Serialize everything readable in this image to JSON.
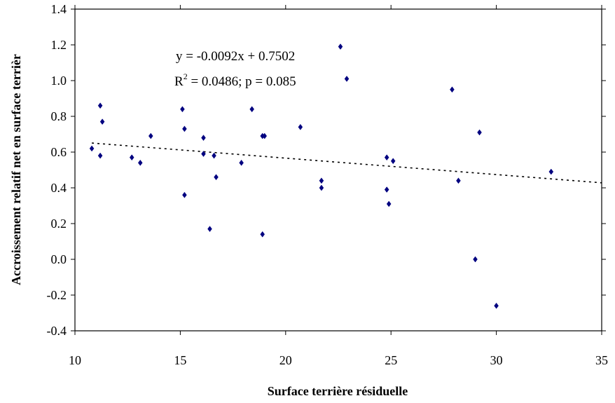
{
  "chart_data": {
    "type": "scatter",
    "title": "",
    "xlabel": "Surface terrière résiduelle",
    "ylabel": "Accroissement relatif net en surface terrièr",
    "xlim": [
      10,
      35
    ],
    "ylim": [
      -0.4,
      1.4
    ],
    "x_ticks": [
      "10",
      "15",
      "20",
      "25",
      "30",
      "35"
    ],
    "y_ticks": [
      "-0.4",
      "-0.2",
      "0.0",
      "0.2",
      "0.4",
      "0.6",
      "0.8",
      "1.0",
      "1.2",
      "1.4"
    ],
    "grid": false,
    "legend": "none",
    "marker_color": "#000080",
    "trendline": {
      "slope": -0.0092,
      "intercept": 0.7502,
      "x_range": [
        10.8,
        35
      ],
      "style": "dotted"
    },
    "annotations": {
      "equation": "y = -0.0092x + 0.7502",
      "r2_prefix": "R",
      "r2_exp": "2",
      "r2_rest": " = 0.0486; p = 0.085"
    },
    "points": [
      {
        "x": 10.8,
        "y": 0.62
      },
      {
        "x": 11.2,
        "y": 0.86
      },
      {
        "x": 11.3,
        "y": 0.77
      },
      {
        "x": 11.2,
        "y": 0.58
      },
      {
        "x": 12.7,
        "y": 0.57
      },
      {
        "x": 13.1,
        "y": 0.54
      },
      {
        "x": 13.6,
        "y": 0.69
      },
      {
        "x": 15.1,
        "y": 0.84
      },
      {
        "x": 15.2,
        "y": 0.73
      },
      {
        "x": 15.2,
        "y": 0.36
      },
      {
        "x": 16.1,
        "y": 0.68
      },
      {
        "x": 16.1,
        "y": 0.59
      },
      {
        "x": 16.4,
        "y": 0.17
      },
      {
        "x": 16.6,
        "y": 0.58
      },
      {
        "x": 16.7,
        "y": 0.46
      },
      {
        "x": 17.9,
        "y": 0.54
      },
      {
        "x": 18.4,
        "y": 0.84
      },
      {
        "x": 18.9,
        "y": 0.69
      },
      {
        "x": 18.9,
        "y": 0.14
      },
      {
        "x": 19.0,
        "y": 0.69
      },
      {
        "x": 20.7,
        "y": 0.74
      },
      {
        "x": 21.7,
        "y": 0.44
      },
      {
        "x": 21.7,
        "y": 0.4
      },
      {
        "x": 22.6,
        "y": 1.19
      },
      {
        "x": 22.9,
        "y": 1.01
      },
      {
        "x": 24.8,
        "y": 0.57
      },
      {
        "x": 24.8,
        "y": 0.39
      },
      {
        "x": 24.9,
        "y": 0.31
      },
      {
        "x": 25.1,
        "y": 0.55
      },
      {
        "x": 27.9,
        "y": 0.95
      },
      {
        "x": 28.2,
        "y": 0.44
      },
      {
        "x": 29.0,
        "y": 0.0
      },
      {
        "x": 29.2,
        "y": 0.71
      },
      {
        "x": 30.0,
        "y": -0.26
      },
      {
        "x": 32.6,
        "y": 0.49
      }
    ]
  }
}
